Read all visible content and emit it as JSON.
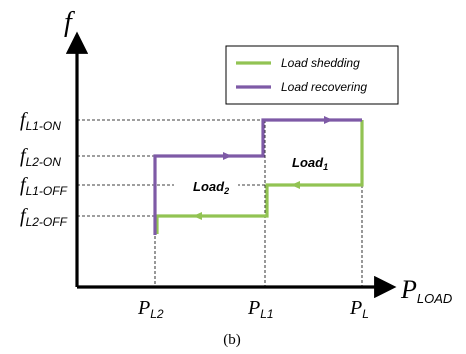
{
  "axes": {
    "y_symbol": "f",
    "x_symbol": "P",
    "x_subscript": "LOAD"
  },
  "legend": {
    "items": [
      {
        "label": "Load shedding",
        "color": "#92c353"
      },
      {
        "label": "Load recovering",
        "color": "#7e5aa6"
      }
    ]
  },
  "y_ticks": [
    {
      "main": "f",
      "sub": "L1-ON"
    },
    {
      "main": "f",
      "sub": "L2-ON"
    },
    {
      "main": "f",
      "sub": "L1-OFF"
    },
    {
      "main": "f",
      "sub": "L2-OFF"
    }
  ],
  "x_ticks": [
    {
      "main": "P",
      "sub": "L2"
    },
    {
      "main": "P",
      "sub": "L1"
    },
    {
      "main": "P",
      "sub": "L"
    }
  ],
  "region_labels": {
    "load1": {
      "main": "Load",
      "sub": "1"
    },
    "load2": {
      "main": "Load",
      "sub": "2"
    }
  },
  "caption": "(b)",
  "colors": {
    "shedding": "#92c353",
    "recovering": "#7e5aa6",
    "axis": "#000000"
  }
}
